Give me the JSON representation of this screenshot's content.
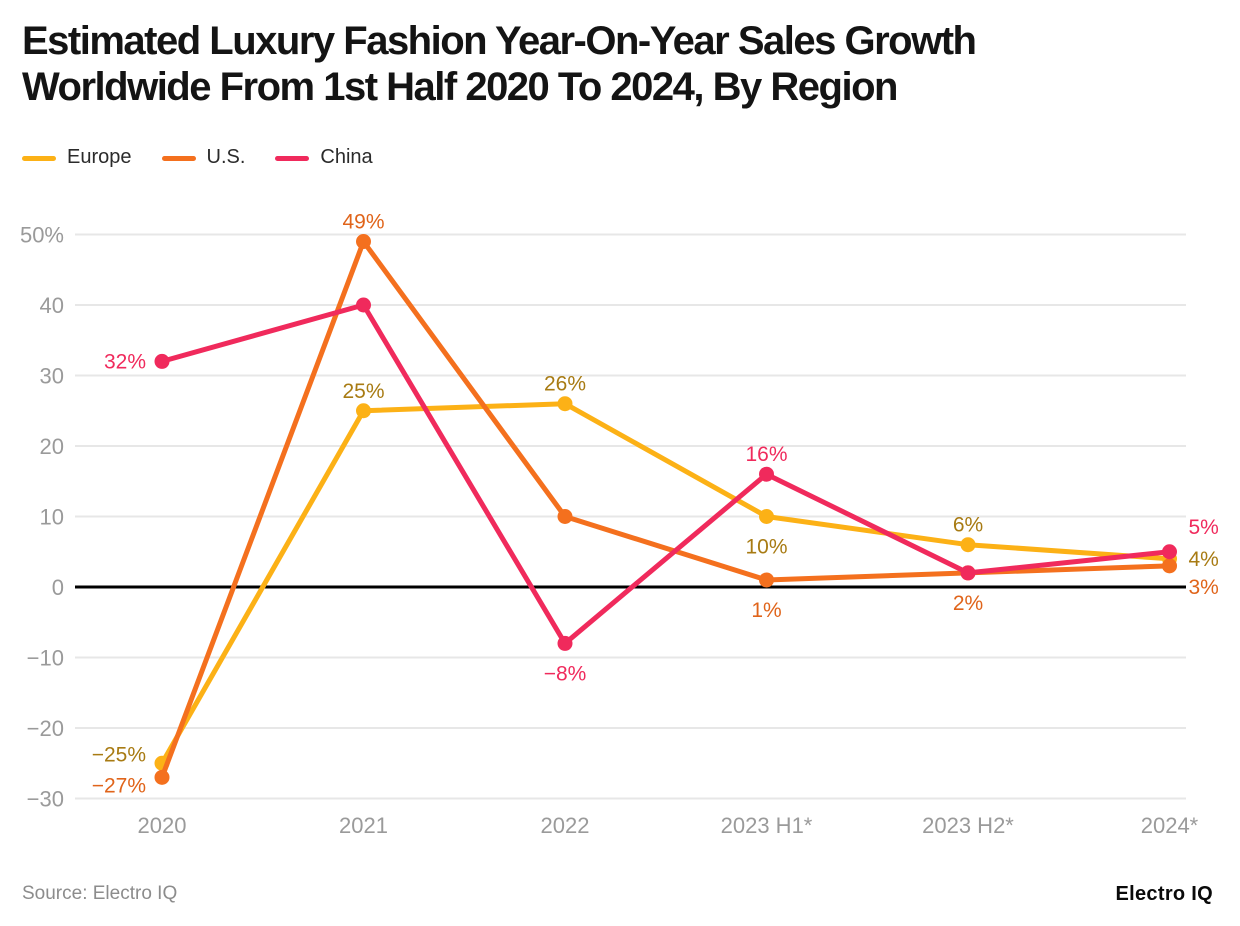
{
  "title_lines": [
    "Estimated Luxury Fashion Year-On-Year Sales Growth",
    "Worldwide From 1st Half 2020 To 2024, By Region"
  ],
  "footer": {
    "source": "Source: Electro IQ",
    "logo": "Electro IQ"
  },
  "colors": {
    "grid": "#e7e7e7",
    "zero_line": "#000000",
    "axis_text": "#9a9a9a",
    "title_text": "#141414",
    "legend_text": "#2b2b2b"
  },
  "chart_data": {
    "type": "line",
    "title": "Estimated Luxury Fashion Year-On-Year Sales Growth Worldwide From 1st Half 2020 To 2024, By Region",
    "categories": [
      "2020",
      "2021",
      "2022",
      "2023 H1*",
      "2023 H2*",
      "2024*"
    ],
    "xlabel": "",
    "ylabel": "",
    "ylim": [
      -30,
      50
    ],
    "grid": "horizontal",
    "zero_baseline": true,
    "legend_position": "top-left",
    "value_suffix": "%",
    "y_ticks": [
      {
        "label": "50%",
        "value": 50
      },
      {
        "label": "40",
        "value": 40
      },
      {
        "label": "30",
        "value": 30
      },
      {
        "label": "20",
        "value": 20
      },
      {
        "label": "10",
        "value": 10
      },
      {
        "label": "0",
        "value": 0
      },
      {
        "label": "−10",
        "value": -10
      },
      {
        "label": "−20",
        "value": -20
      },
      {
        "label": "−30",
        "value": -30
      }
    ],
    "series": [
      {
        "name": "Europe",
        "color": "#FCB116",
        "label_color": "#A87B13",
        "values": [
          -25,
          25,
          26,
          10,
          6,
          4
        ],
        "point_labels": [
          {
            "text": "−25%",
            "pos": "left-up"
          },
          {
            "text": "25%",
            "pos": "above"
          },
          {
            "text": "26%",
            "pos": "above"
          },
          {
            "text": "10%",
            "pos": "below"
          },
          {
            "text": "6%",
            "pos": "above"
          },
          {
            "text": "4%",
            "pos": "right"
          }
        ]
      },
      {
        "name": "U.S.",
        "color": "#F4701E",
        "label_color": "#E0641A",
        "values": [
          -27,
          49,
          10,
          1,
          2,
          3
        ],
        "point_labels": [
          {
            "text": "−27%",
            "pos": "left-down"
          },
          {
            "text": "49%",
            "pos": "above"
          },
          null,
          {
            "text": "1%",
            "pos": "below"
          },
          {
            "text": "2%",
            "pos": "below"
          },
          {
            "text": "3%",
            "pos": "right-down"
          }
        ]
      },
      {
        "name": "China",
        "color": "#F02A5C",
        "label_color": "#F02A5C",
        "values": [
          32,
          40,
          -8,
          16,
          2,
          5
        ],
        "point_labels": [
          {
            "text": "32%",
            "pos": "left"
          },
          null,
          {
            "text": "−8%",
            "pos": "below"
          },
          {
            "text": "16%",
            "pos": "above"
          },
          null,
          {
            "text": "5%",
            "pos": "right-up"
          }
        ]
      }
    ]
  }
}
